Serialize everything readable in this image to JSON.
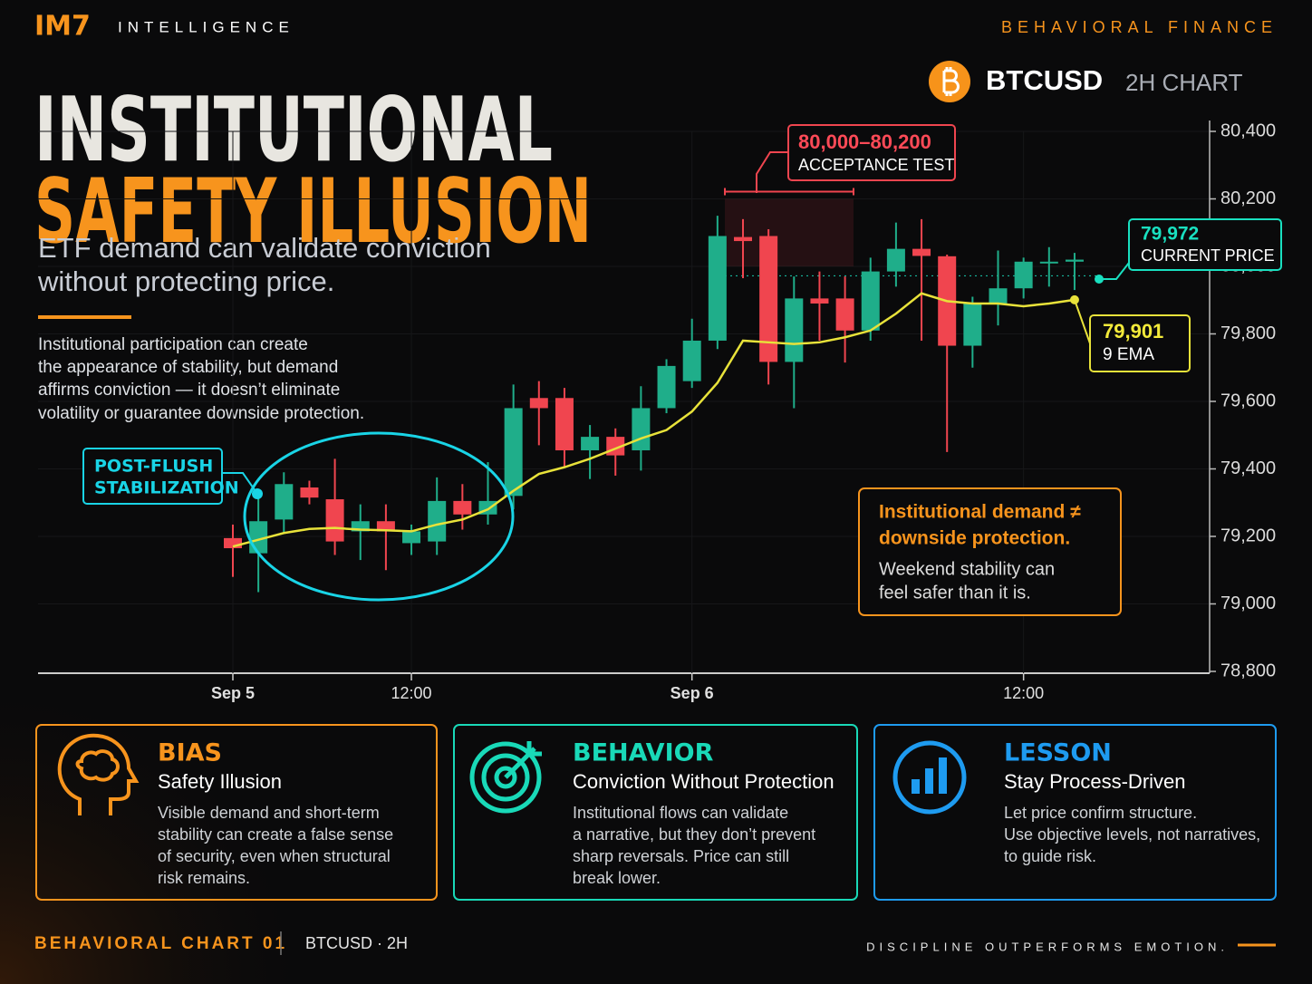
{
  "header": {
    "brand": "IM7",
    "brand_sub": "INTELLIGENCE",
    "tag": "BEHAVIORAL FINANCE"
  },
  "headline": {
    "line1": "INSTITUTIONAL",
    "line2": "SAFETY ILLUSION",
    "subtitle": [
      "ETF demand can validate conviction",
      "without protecting price."
    ],
    "body": [
      "Institutional participation can create",
      "the appearance of stability, but demand",
      "affirms conviction — it doesn’t eliminate",
      "volatility or guarantee downside protection."
    ]
  },
  "chart_data": {
    "type": "candlestick",
    "symbol": "BTCUSD",
    "timeframe": "2H CHART",
    "up_color": "#1fae8a",
    "down_color": "#f0454f",
    "categories": [
      "Sep 5",
      null,
      null,
      null,
      null,
      null,
      null,
      "12:00",
      null,
      null,
      null,
      null,
      null,
      null,
      null,
      null,
      null,
      null,
      "Sep 6",
      null,
      null,
      null,
      null,
      null,
      null,
      null,
      null,
      null,
      null,
      null,
      null,
      "12:00",
      null,
      null
    ],
    "open": [
      79195,
      79150,
      79250,
      79345,
      79310,
      79215,
      79245,
      79180,
      79185,
      79305,
      79265,
      79320,
      79610,
      79610,
      79455,
      79495,
      79455,
      79580,
      79660,
      79780,
      80087,
      80090,
      79717,
      79905,
      79905,
      79810,
      79985,
      80052,
      80030,
      79765,
      79890,
      79935,
      80014,
      80014
    ],
    "high": [
      79235,
      79325,
      79390,
      79365,
      79430,
      79295,
      79295,
      79235,
      79375,
      79355,
      79420,
      79650,
      79660,
      79640,
      79530,
      79520,
      79645,
      79725,
      79845,
      80150,
      80140,
      80110,
      79970,
      79985,
      79970,
      80026,
      80130,
      80140,
      80035,
      79910,
      80047,
      80026,
      80057,
      80040
    ],
    "low": [
      79080,
      79035,
      79210,
      79295,
      79145,
      79130,
      79100,
      79145,
      79145,
      79220,
      79235,
      79280,
      79470,
      79405,
      79370,
      79380,
      79395,
      79565,
      79640,
      79755,
      79965,
      79650,
      79580,
      79780,
      79715,
      79780,
      79940,
      79780,
      79450,
      79700,
      79825,
      79905,
      79940,
      79930
    ],
    "close": [
      79165,
      79245,
      79355,
      79315,
      79185,
      79245,
      79215,
      79215,
      79305,
      79265,
      79305,
      79580,
      79580,
      79455,
      79495,
      79440,
      79580,
      79705,
      79780,
      80090,
      80075,
      79717,
      79905,
      79890,
      79810,
      79985,
      80052,
      80031,
      79765,
      79890,
      79935,
      80014,
      80014,
      80020
    ],
    "ema": {
      "name": "9 EMA",
      "color": "#e8e23a",
      "value_label": "79,901",
      "values": [
        79170,
        79190,
        79210,
        79222,
        79225,
        79220,
        79218,
        79215,
        79235,
        79250,
        79280,
        79335,
        79385,
        79405,
        79430,
        79460,
        79490,
        79515,
        79570,
        79655,
        79780,
        79775,
        79770,
        79775,
        79790,
        79810,
        79860,
        79920,
        79897,
        79890,
        79890,
        79882,
        79890,
        79901
      ]
    },
    "current_price": {
      "value": 79972,
      "label": "79,972",
      "name": "CURRENT PRICE",
      "color": "#19e0c0"
    },
    "zone": {
      "low": 80000,
      "high": 80200,
      "label": "80,000–80,200",
      "name": "ACCEPTANCE TEST"
    },
    "callout": [
      "POST-FLUSH",
      "STABILIZATION"
    ],
    "note": {
      "title": [
        "Institutional demand ≠",
        "downside protection."
      ],
      "body": [
        "Weekend stability can",
        "feel safer than it is."
      ]
    },
    "ylim": [
      78800,
      80400
    ],
    "yticks": [
      {
        "value": 78800,
        "label": "78,800"
      },
      {
        "value": 79000,
        "label": "79,000"
      },
      {
        "value": 79200,
        "label": "79,200"
      },
      {
        "value": 79400,
        "label": "79,400"
      },
      {
        "value": 79600,
        "label": "79,600"
      },
      {
        "value": 79800,
        "label": "79,800"
      },
      {
        "value": 80000,
        "label": "80,000"
      },
      {
        "value": 80200,
        "label": "80,200"
      },
      {
        "value": 80400,
        "label": "80,400"
      }
    ],
    "grid": true
  },
  "cards": [
    {
      "title": "BIAS",
      "subtitle": "Safety Illusion",
      "color": "#f7941d",
      "lines": [
        "Visible demand and short-term",
        "stability can create a false sense",
        "of security, even when structural",
        "risk remains."
      ]
    },
    {
      "title": "BEHAVIOR",
      "subtitle": "Conviction Without Protection",
      "color": "#19d9b8",
      "lines": [
        "Institutional flows can validate",
        "a narrative, but they don’t prevent",
        "sharp reversals. Price can still",
        "break lower."
      ]
    },
    {
      "title": "LESSON",
      "subtitle": "Stay Process-Driven",
      "color": "#1e9bf0",
      "lines": [
        "Let price confirm structure.",
        "Use objective levels, not narratives,",
        "to guide risk."
      ]
    }
  ],
  "footer": {
    "left": "BEHAVIORAL CHART 01",
    "middle": "BTCUSD · 2H",
    "right": "DISCIPLINE OUTPERFORMS EMOTION."
  }
}
